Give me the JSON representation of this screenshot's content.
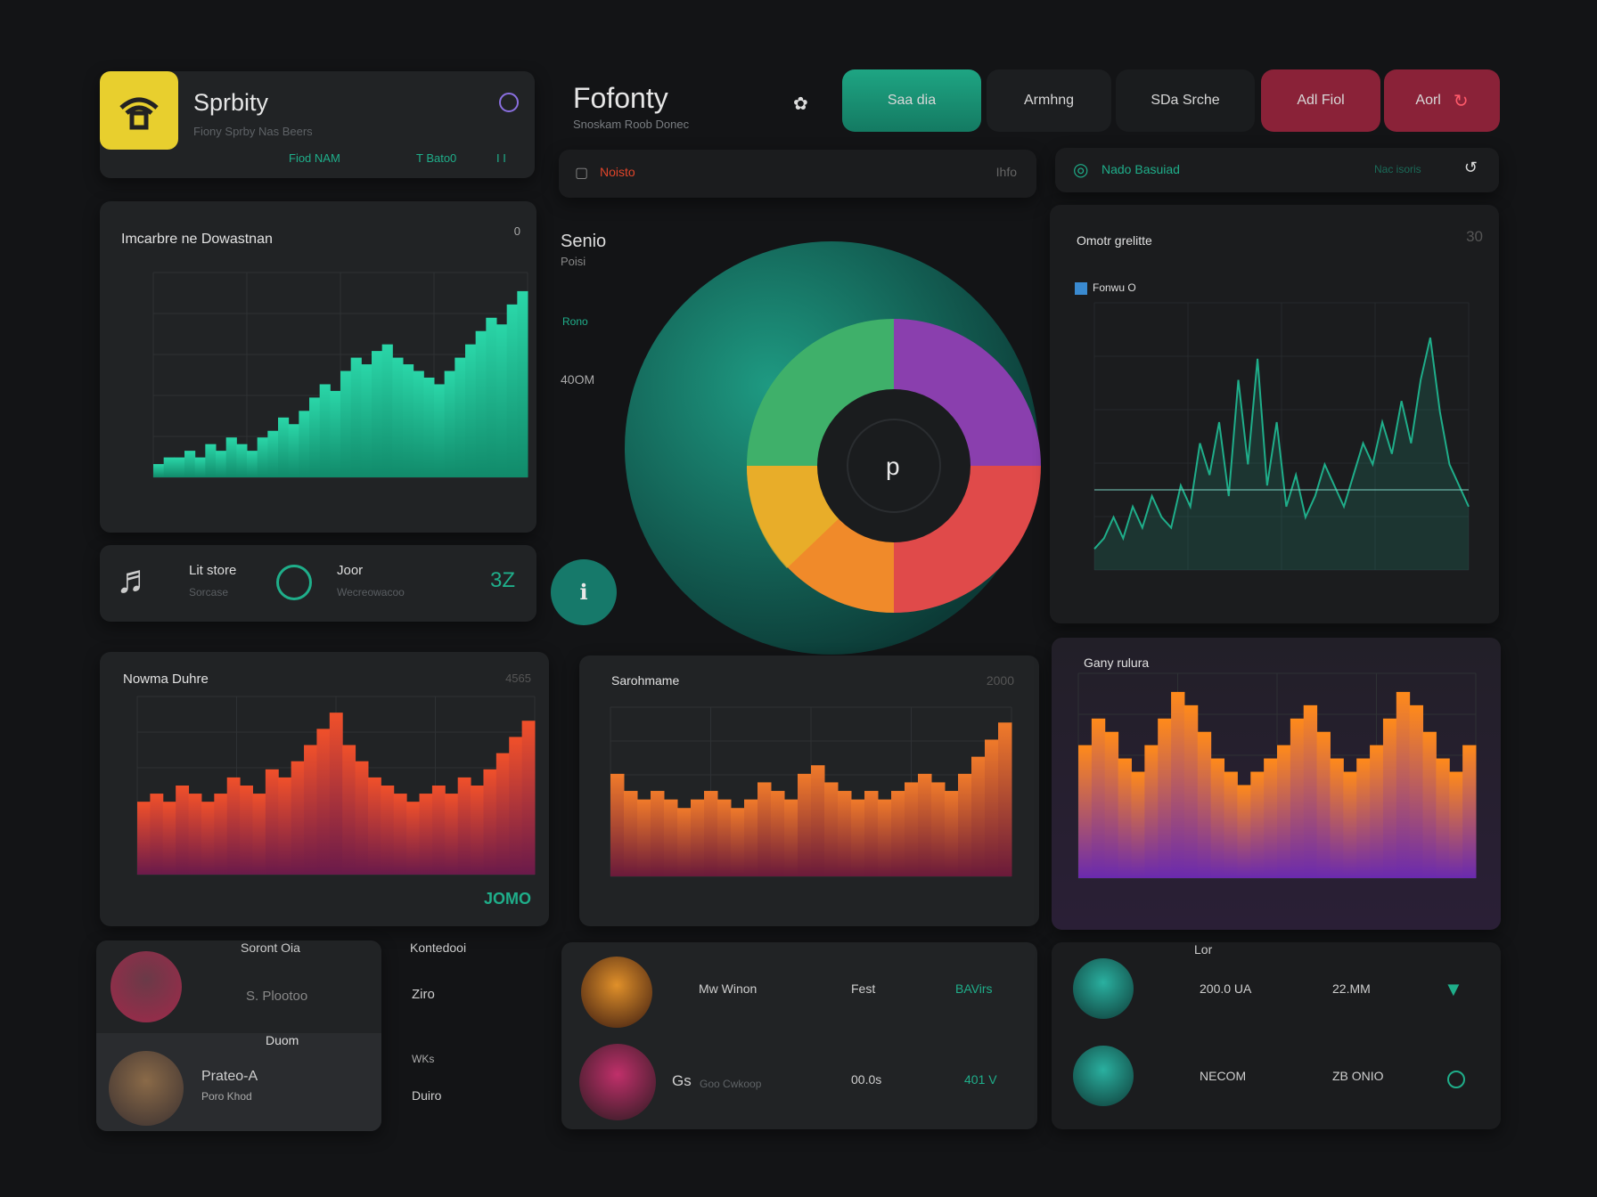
{
  "brand": {
    "name": "Sprbity",
    "subtitle": "Fiony Sprby Nas Beers",
    "stat1": "Fiod NAM",
    "stat2": "T Bato0",
    "stat3": "I I"
  },
  "header": {
    "title": "Fofonty",
    "subtitle": "Snoskam Roob Donec"
  },
  "tabs": [
    {
      "label": "Saa dia",
      "active": true
    },
    {
      "label": "Armhng",
      "active": false
    },
    {
      "label": "SDa Srche",
      "active": false
    },
    {
      "label": "Adl Fiol",
      "active": false
    },
    {
      "label": "Aorl",
      "active": false
    }
  ],
  "search": {
    "label": "Noisto",
    "right": "Ihfo"
  },
  "search2": {
    "label": "Nado Basuiad",
    "right": "Nac isoris"
  },
  "panel_left_top": {
    "title": "Imcarbre ne Dowastnan",
    "badge": "0"
  },
  "player": {
    "title": "Lit store",
    "sub": "Sorcase",
    "title2": "Joor",
    "sub2": "Wecreowacoo",
    "value": "3Z"
  },
  "donut_labels": {
    "title": "Senio",
    "sub": "Poisi",
    "label1": "Rono",
    "label2": "40OM"
  },
  "panel_right_top": {
    "title": "Omotr grelitte",
    "badge": "30",
    "legend": "Fonwu O"
  },
  "panel_bottom_1": {
    "title": "Nowma Duhre",
    "badge": "4565",
    "highlight": "JOMO"
  },
  "panel_bottom_2": {
    "title": "Sarohmame",
    "badge": "2000"
  },
  "panel_bottom_3": {
    "title": "Gany rulura"
  },
  "list_left": {
    "header1": "Soront Oia",
    "header2": "Kontedooi",
    "rows": [
      {
        "name": "S. Plootoo",
        "side": "Ziro"
      },
      {
        "name": "Prateo-A",
        "sub": "Poro Khod",
        "badge": "Duom",
        "side": "Duiro"
      }
    ],
    "mid": "WKs"
  },
  "list_mid": {
    "rows": [
      {
        "name": "Mw Winon",
        "c2": "Fest",
        "c3": "BAVirs"
      },
      {
        "name": "Gs",
        "sub": "Goo Cwkoop",
        "c2": "00.0s",
        "c3": "401 V"
      }
    ]
  },
  "list_right": {
    "header": "Lor",
    "rows": [
      {
        "c1": "200.0 UA",
        "c2": "22.MM"
      },
      {
        "c1": "NECOM",
        "c2": "ZB ONIO"
      }
    ]
  },
  "colors": {
    "teal": "#1fae8a",
    "red": "#e04a4a",
    "orange": "#f08a2a",
    "purple": "#8a3fae",
    "yellow": "#e6c22a",
    "pink": "#a0294a"
  },
  "chart_data": [
    {
      "type": "bar",
      "name": "left-top",
      "values": [
        2,
        3,
        3,
        4,
        3,
        5,
        4,
        6,
        5,
        4,
        6,
        7,
        9,
        8,
        10,
        12,
        14,
        13,
        16,
        18,
        17,
        19,
        20,
        18,
        17,
        16,
        15,
        14,
        16,
        18,
        20,
        22,
        24,
        23,
        26,
        28
      ]
    },
    {
      "type": "line",
      "name": "right-top",
      "values": [
        2,
        3,
        5,
        3,
        6,
        4,
        7,
        5,
        4,
        8,
        6,
        12,
        9,
        14,
        7,
        18,
        10,
        20,
        8,
        14,
        6,
        9,
        5,
        7,
        10,
        8,
        6,
        9,
        12,
        10,
        14,
        11,
        16,
        12,
        18,
        22,
        15,
        10,
        8,
        6
      ]
    },
    {
      "type": "bar",
      "name": "bottom-1",
      "values": [
        9,
        10,
        9,
        11,
        10,
        9,
        10,
        12,
        11,
        10,
        13,
        12,
        14,
        16,
        18,
        20,
        16,
        14,
        12,
        11,
        10,
        9,
        10,
        11,
        10,
        12,
        11,
        13,
        15,
        17,
        19
      ]
    },
    {
      "type": "bar",
      "name": "bottom-2",
      "values": [
        12,
        10,
        9,
        10,
        9,
        8,
        9,
        10,
        9,
        8,
        9,
        11,
        10,
        9,
        12,
        13,
        11,
        10,
        9,
        10,
        9,
        10,
        11,
        12,
        11,
        10,
        12,
        14,
        16,
        18
      ]
    },
    {
      "type": "bar",
      "name": "bottom-3",
      "values": [
        10,
        12,
        11,
        9,
        8,
        10,
        12,
        14,
        13,
        11,
        9,
        8,
        7,
        8,
        9,
        10,
        12,
        13,
        11,
        9,
        8,
        9,
        10,
        12,
        14,
        13,
        11,
        9,
        8,
        10
      ]
    }
  ]
}
